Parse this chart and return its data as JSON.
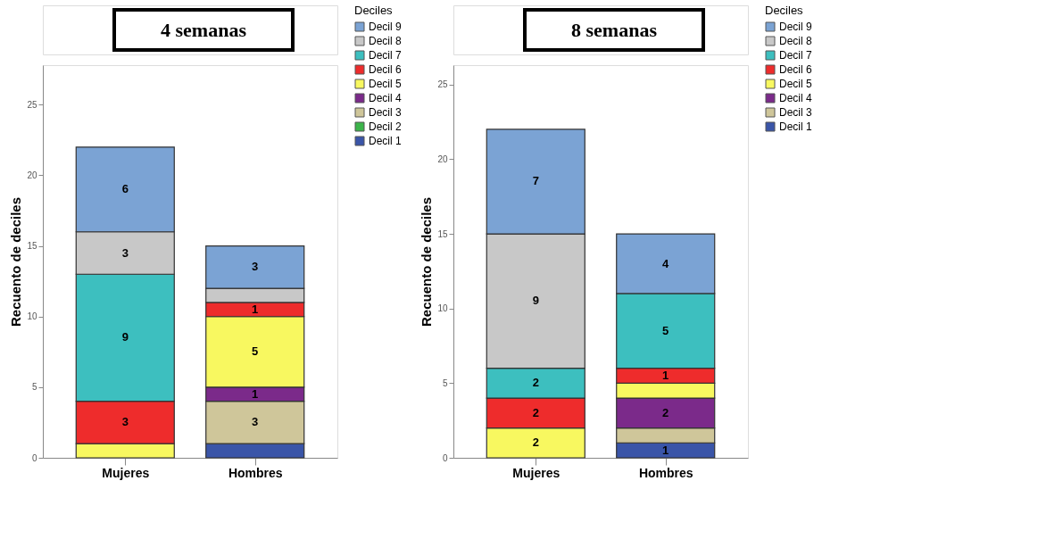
{
  "chart_data": [
    {
      "type": "bar",
      "title": "4 semanas",
      "ylabel": "Recuento de deciles",
      "legend_title": "Deciles",
      "legend": "right",
      "grid": false,
      "stacked": true,
      "categories": [
        "Mujeres",
        "Hombres"
      ],
      "ylim": [
        0,
        27.8
      ],
      "yticks": [
        0,
        5,
        10,
        15,
        20,
        25
      ],
      "series": [
        {
          "name": "Decil 1",
          "color": "#3a55a8",
          "values": [
            null,
            1
          ],
          "value_labels": [
            null,
            null
          ]
        },
        {
          "name": "Decil 2",
          "color": "#3cb44a",
          "values": [
            null,
            null
          ],
          "value_labels": [
            null,
            null
          ]
        },
        {
          "name": "Decil 3",
          "color": "#cfc69a",
          "values": [
            null,
            3
          ],
          "value_labels": [
            null,
            "3"
          ]
        },
        {
          "name": "Decil 4",
          "color": "#7b2a8a",
          "values": [
            null,
            1
          ],
          "value_labels": [
            null,
            "1"
          ]
        },
        {
          "name": "Decil 5",
          "color": "#f8f860",
          "values": [
            1,
            5
          ],
          "value_labels": [
            null,
            "5"
          ]
        },
        {
          "name": "Decil 6",
          "color": "#ee2c2c",
          "values": [
            3,
            1
          ],
          "value_labels": [
            "3",
            "1"
          ]
        },
        {
          "name": "Decil 7",
          "color": "#3dbfbf",
          "values": [
            9,
            null
          ],
          "value_labels": [
            "9",
            null
          ]
        },
        {
          "name": "Decil 8",
          "color": "#c8c8c8",
          "values": [
            3,
            1
          ],
          "value_labels": [
            "3",
            null
          ]
        },
        {
          "name": "Decil 9",
          "color": "#7ba3d4",
          "values": [
            6,
            3
          ],
          "value_labels": [
            "6",
            "3"
          ]
        }
      ]
    },
    {
      "type": "bar",
      "title": "8 semanas",
      "ylabel": "Recuento de deciles",
      "legend_title": "Deciles",
      "legend": "right",
      "grid": false,
      "stacked": true,
      "categories": [
        "Mujeres",
        "Hombres"
      ],
      "ylim": [
        0,
        26.3
      ],
      "yticks": [
        0,
        5,
        10,
        15,
        20,
        25
      ],
      "series": [
        {
          "name": "Decil 1",
          "color": "#3a55a8",
          "values": [
            null,
            1
          ],
          "value_labels": [
            null,
            "1"
          ]
        },
        {
          "name": "Decil 3",
          "color": "#cfc69a",
          "values": [
            null,
            1
          ],
          "value_labels": [
            null,
            null
          ]
        },
        {
          "name": "Decil 4",
          "color": "#7b2a8a",
          "values": [
            null,
            2
          ],
          "value_labels": [
            null,
            "2"
          ]
        },
        {
          "name": "Decil 5",
          "color": "#f8f860",
          "values": [
            2,
            1
          ],
          "value_labels": [
            "2",
            null
          ]
        },
        {
          "name": "Decil 6",
          "color": "#ee2c2c",
          "values": [
            2,
            1
          ],
          "value_labels": [
            "2",
            "1"
          ]
        },
        {
          "name": "Decil 7",
          "color": "#3dbfbf",
          "values": [
            2,
            5
          ],
          "value_labels": [
            "2",
            "5"
          ]
        },
        {
          "name": "Decil 8",
          "color": "#c8c8c8",
          "values": [
            9,
            null
          ],
          "value_labels": [
            "9",
            null
          ]
        },
        {
          "name": "Decil 9",
          "color": "#7ba3d4",
          "values": [
            7,
            4
          ],
          "value_labels": [
            "7",
            "4"
          ]
        }
      ]
    }
  ]
}
